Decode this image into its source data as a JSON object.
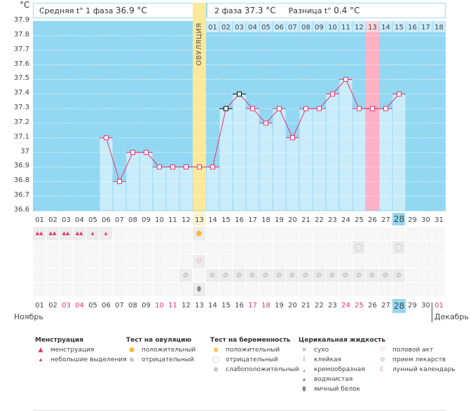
{
  "unit_label": "°C",
  "header": {
    "phase1": "Средняя t° 1 фаза",
    "phase1_value": "36.9 °C",
    "phase2": "2 фаза",
    "phase2_value": "37.3 °C",
    "diff": "Разница t°",
    "diff_value": "0.4 °C",
    "ovulation_label": "ОВУЛЯЦИЯ"
  },
  "colors": {
    "background": "#93d8f2",
    "bar": "#c9ecfb",
    "line": "#e8336b",
    "ovulation": "#fbe89a",
    "highlight": "#fdb1c5",
    "weekend": "#e8336b"
  },
  "chart_data": {
    "type": "line",
    "ylim": [
      36.6,
      37.9
    ],
    "yticks": [
      "37.9",
      "37.8",
      "37.7",
      "37.6",
      "37.5",
      "37.4",
      "37.3",
      "37.2",
      "37.1",
      "37",
      "36.9",
      "36.8",
      "36.7",
      "36.6"
    ],
    "x": [
      "01",
      "02",
      "03",
      "04",
      "05",
      "06",
      "07",
      "08",
      "09",
      "10",
      "11",
      "12",
      "13",
      "14",
      "15",
      "16",
      "17",
      "18",
      "19",
      "20",
      "21",
      "22",
      "23",
      "24",
      "25",
      "26",
      "27",
      "28",
      "29",
      "30",
      "31"
    ],
    "values": [
      null,
      null,
      null,
      null,
      null,
      37.1,
      36.8,
      37.0,
      37.0,
      36.9,
      36.9,
      36.9,
      36.9,
      36.9,
      37.3,
      37.4,
      37.3,
      37.2,
      37.3,
      37.1,
      37.3,
      37.3,
      37.4,
      37.5,
      37.3,
      37.3,
      37.3,
      37.4,
      null,
      null,
      null
    ],
    "black_markers": [
      "15",
      "16"
    ],
    "ovulation_day": "13",
    "today": "28",
    "phase2_days": [
      "01",
      "02",
      "03",
      "04",
      "05",
      "06",
      "07",
      "08",
      "09",
      "10",
      "11",
      "12",
      "13",
      "14",
      "15",
      "16",
      "17",
      "18"
    ],
    "phase2_highlight": "13",
    "grid": true
  },
  "bottom": {
    "dates": [
      "01",
      "02",
      "03",
      "04",
      "05",
      "06",
      "07",
      "08",
      "09",
      "10",
      "11",
      "12",
      "13",
      "14",
      "15",
      "16",
      "17",
      "18",
      "19",
      "20",
      "21",
      "22",
      "23",
      "24",
      "25",
      "26",
      "27",
      "28",
      "29",
      "30"
    ],
    "weekends": [
      "03",
      "04",
      "10",
      "11",
      "17",
      "18",
      "24",
      "25"
    ],
    "next_month_day": "01",
    "month_left": "Ноябрь",
    "month_right": "Декабрь",
    "menstruation": {
      "heavy": [
        "01",
        "02",
        "03",
        "04"
      ],
      "light": [
        "05",
        "06"
      ]
    },
    "ovulation_test_positive": [
      "13"
    ],
    "pregnancy_test_negative": [
      "25",
      "28"
    ],
    "intercourse": [
      "13"
    ],
    "medication": [
      "12",
      "14",
      "15",
      "16",
      "17",
      "18",
      "19",
      "20",
      "21",
      "22",
      "23",
      "24",
      "25",
      "26",
      "27",
      "28"
    ],
    "cervical_egg_white": [
      "13"
    ]
  },
  "legend": {
    "groups": [
      {
        "title": "Менструация",
        "items": [
          {
            "icon": "drops-icon",
            "label": "менструация"
          },
          {
            "icon": "drop-icon",
            "label": "небольшие выделения"
          }
        ]
      },
      {
        "title": "Тест на овуляцию",
        "items": [
          {
            "icon": "sun-positive-icon",
            "label": "положительный"
          },
          {
            "icon": "sun-negative-icon",
            "label": "отрицательный"
          }
        ]
      },
      {
        "title": "Тест на беременность",
        "items": [
          {
            "icon": "test-positive-icon",
            "label": "положительный"
          },
          {
            "icon": "test-negative-icon",
            "label": "отрицательный"
          },
          {
            "icon": "test-weak-icon",
            "label": "слабоположительный"
          }
        ]
      },
      {
        "title": "Церикальная жидкость",
        "items": [
          {
            "icon": "cross-icon",
            "label": "сухо"
          },
          {
            "icon": "sticky-icon",
            "label": "клейкая"
          },
          {
            "icon": "cream-icon",
            "label": "кремообразная"
          },
          {
            "icon": "watery-icon",
            "label": "водянистая"
          },
          {
            "icon": "egg-white-icon",
            "label": "яичный белок"
          }
        ]
      },
      {
        "title": "",
        "items": [
          {
            "icon": "heart-icon",
            "label": "половой акт"
          },
          {
            "icon": "pill-icon",
            "label": "прием лекарств"
          },
          {
            "icon": "moon-icon",
            "label": "лунный календарь"
          }
        ]
      }
    ]
  }
}
